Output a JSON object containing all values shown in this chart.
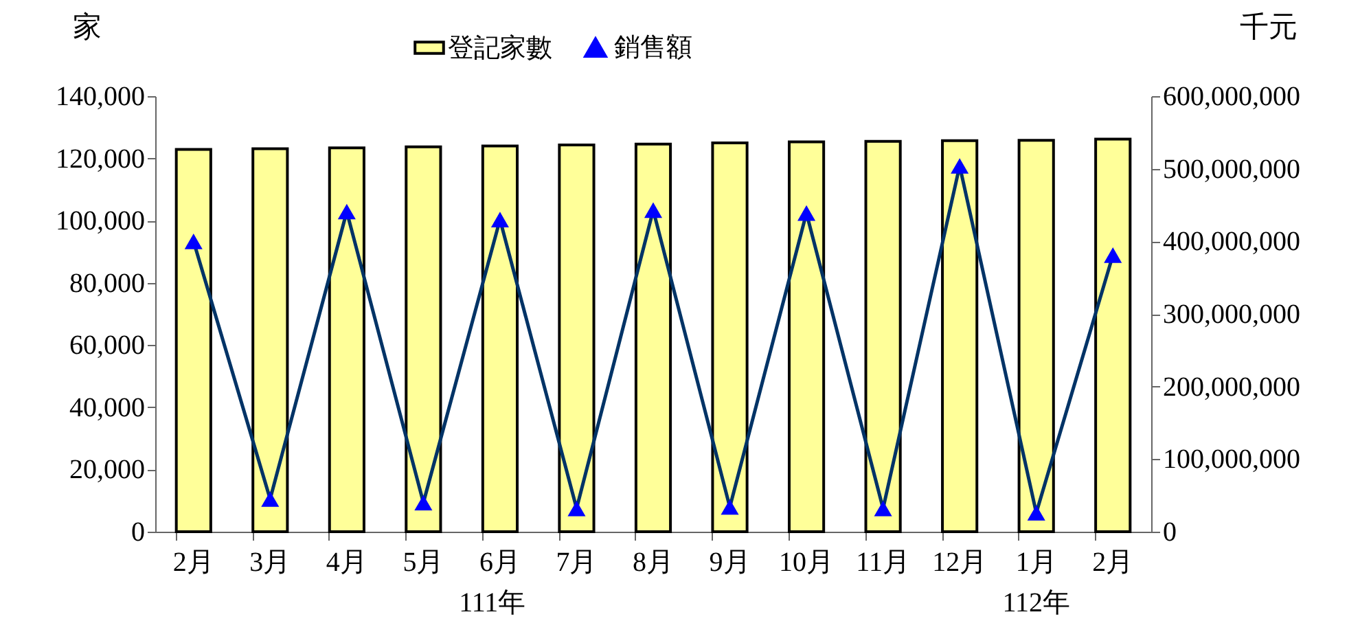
{
  "chart_data": {
    "type": "bar",
    "categories": [
      "2月",
      "3月",
      "4月",
      "5月",
      "6月",
      "7月",
      "8月",
      "9月",
      "10月",
      "11月",
      "12月",
      "1月",
      "2月"
    ],
    "ylabel": "家",
    "y2label": "千元",
    "ylim": [
      0,
      140000
    ],
    "yticks": [
      0,
      {
        "value": 20000,
        "label": "20,000"
      },
      {
        "value": 40000,
        "label": "40,000"
      },
      {
        "value": 60000,
        "label": "60,000"
      },
      {
        "value": 80000,
        "label": "80,000"
      },
      {
        "value": 100000,
        "label": "100,000"
      },
      {
        "value": 120000,
        "label": "120,000"
      },
      {
        "value": 140000,
        "label": "140,000"
      }
    ],
    "y2lim": [
      0,
      600000000
    ],
    "y2ticks": [
      0,
      {
        "value": 100000000,
        "label": "100,000,000"
      },
      {
        "value": 200000000,
        "label": "200,000,000"
      },
      {
        "value": 300000000,
        "label": "300,000,000"
      },
      {
        "value": 400000000,
        "label": "400,000,000"
      },
      {
        "value": 500000000,
        "label": "500,000,000"
      },
      {
        "value": 600000000,
        "label": "600,000,000"
      }
    ],
    "legend": "top",
    "marker": "triangle",
    "annotations": [
      "111年",
      "112年"
    ],
    "series": [
      {
        "name": "登記家數",
        "color": "#ffff99",
        "values": [
          122900,
          123100,
          123400,
          123700,
          124000,
          124300,
          124600,
          125000,
          125300,
          125500,
          125700,
          125800,
          126200
        ]
      },
      {
        "name": "銷售額",
        "type": "line",
        "axis": "y2",
        "color": "#0000ff",
        "values": [
          400000000,
          45000000,
          441000000,
          40000000,
          430000000,
          32000000,
          443000000,
          34000000,
          439000000,
          32000000,
          504000000,
          26000000,
          381000000
        ]
      }
    ]
  }
}
